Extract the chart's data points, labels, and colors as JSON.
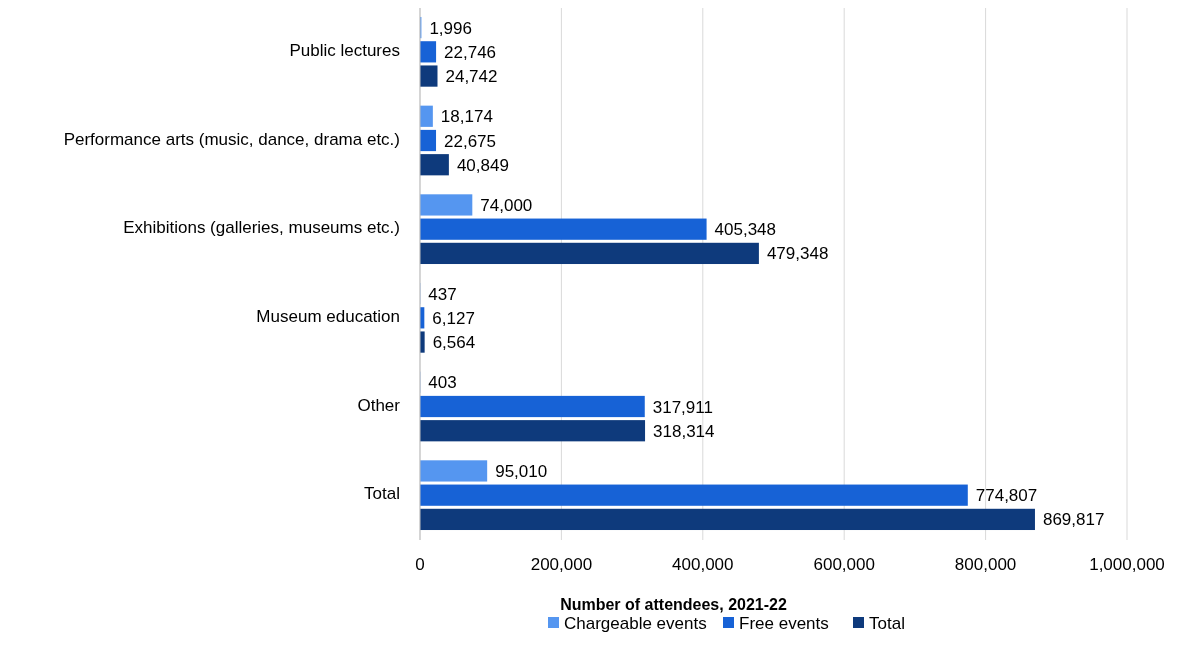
{
  "chart_data": {
    "type": "bar",
    "orientation": "horizontal",
    "xlabel": "Number of attendees, 2021-22",
    "categories": [
      "Public lectures",
      "Performance arts (music, dance, drama etc.)",
      "Exhibitions (galleries, museums etc.)",
      "Museum education",
      "Other",
      "Total"
    ],
    "series": [
      {
        "name": "Chargeable events",
        "color": "#5596f0",
        "values": [
          1996,
          18174,
          74000,
          437,
          403,
          95010
        ],
        "value_labels": [
          "1,996",
          "18,174",
          "74,000",
          "437",
          "403",
          "95,010"
        ]
      },
      {
        "name": "Free events",
        "color": "#1762d6",
        "values": [
          22746,
          22675,
          405348,
          6127,
          317911,
          774807
        ],
        "value_labels": [
          "22,746",
          "22,675",
          "405,348",
          "6,127",
          "317,911",
          "774,807"
        ]
      },
      {
        "name": "Total",
        "color": "#0e3a7c",
        "values": [
          24742,
          40849,
          479348,
          6564,
          318314,
          869817
        ],
        "value_labels": [
          "24,742",
          "40,849",
          "479,348",
          "6,564",
          "318,314",
          "869,817"
        ]
      }
    ],
    "xlim": [
      0,
      1000000
    ],
    "xticks": [
      {
        "value": 0,
        "label": "0"
      },
      {
        "value": 200000,
        "label": "200,000"
      },
      {
        "value": 400000,
        "label": "400,000"
      },
      {
        "value": 600000,
        "label": "600,000"
      },
      {
        "value": 800000,
        "label": "800,000"
      },
      {
        "value": 1000000,
        "label": "1,000,000"
      }
    ],
    "grid": "x",
    "legend": "bottom"
  }
}
